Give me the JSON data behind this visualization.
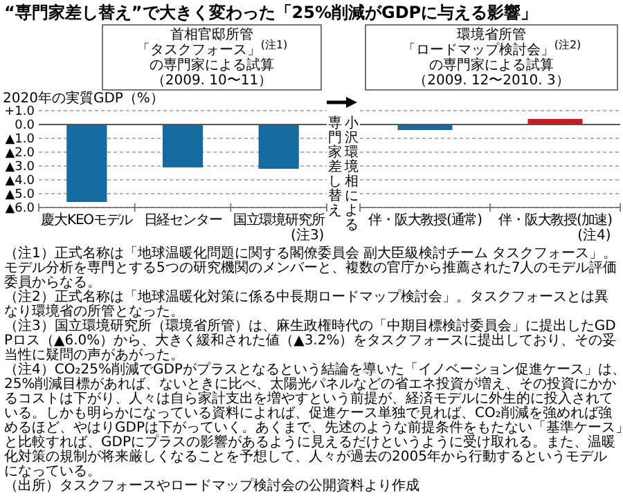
{
  "chart_data": [
    {
      "type": "bar",
      "title": "“専門家差し替え”で大きく変わった「25%削減がGDPに与える影響」",
      "subtitle": "首相官邸所管「タスクフォース」$^{(注1)}$の専門家による試算（2009. 10〜11）",
      "ylabel": "2020年の実質GDP（%）",
      "categories": [
        "慶大KEOモデル",
        "日経センター",
        "国立環境研究所"
      ],
      "values": [
        -5.6,
        -3.1,
        -3.2
      ],
      "color": "#156a9f",
      "ylim": [
        -6,
        1
      ],
      "yticks": [
        {
          "value": 1,
          "label": "+1.0"
        },
        {
          "value": 0,
          "label": "0.0"
        },
        {
          "value": -1,
          "label": "▲1.0"
        },
        {
          "value": -2,
          "label": "▲2.0"
        },
        {
          "value": -3,
          "label": "▲3.0"
        },
        {
          "value": -4,
          "label": "▲4.0"
        },
        {
          "value": -5,
          "label": "▲5.0"
        },
        {
          "value": -6,
          "label": "▲6.0"
        }
      ],
      "grid": "y",
      "annotations": [
        "(注3)",
        "（注1）正式名称は「地球温暖化問題に関する閣僚委員会 副大臣級検討チーム タスクフォース」。モデル分析を専門とする5つの研究機関のメンバーと、複数の官庁から推薦された7人のモデル評価委員からなる。",
        "（注2）正式名称は「地球温暖化対策に係る中長期ロードマップ検討会」。タスクフォースとは異なり環境省の所管となった。",
        "（注3）国立環境研究所（環境省所管）は、麻生政権時代の「中期目標検討委員会」に提出したGDPロス（▲6.0%）から、大きく緩和された値（▲3.2%）をタスクフォースに提出しており、その妥当性に疑問の声があがった。",
        "（注4）CO₂25%削減でGDPがプラスとなるという結論を導いた「イノベーション促進ケース」は、25%削減目標があれば、ないときに比べ、太陽光パネルなどの省エネ投資が増え、その投資にかかるコストは下がり、人々は自ら家計支出を増やすという前提が、経済モデルに外生的に投入されている。しかも明らかになっている資料によれば、促進ケース単独で見れば、CO₂削減を強めれば強めるほど、やはりGDPは下がっていく。あくまで、先述のような前提条件をもたない「基準ケース」と比較すれば、GDPにプラスの影響があるように見えるだけというように受け取れる。また、温暖化対策の規制が将来厳しくなることを予想して、人々が過去の2005年から行動するというモデルになっている。",
        "（出所）タスクフォースやロードマップ検討会の公開資料より作成"
      ]
    },
    {
      "type": "bar",
      "subtitle": "環境省所管「ロードマップ検討会」$^{(注2)}$の専門家による試算（2009. 12〜2010. 3）",
      "categories": [
        "伴・阪大教授(通常)",
        "伴・阪大教授(加速)"
      ],
      "values": [
        -0.4,
        0.4
      ],
      "colors": [
        "#156a9f",
        "#d4151f"
      ],
      "ylim": [
        -6,
        1
      ],
      "yticks": [
        1,
        0,
        -1,
        -2,
        -3,
        -4,
        -5,
        -6
      ],
      "grid": "y",
      "tick_labels": "x",
      "annotations": [
        "(注4)",
        "小沢環境相による",
        "専門家差し替え"
      ]
    }
  ]
}
